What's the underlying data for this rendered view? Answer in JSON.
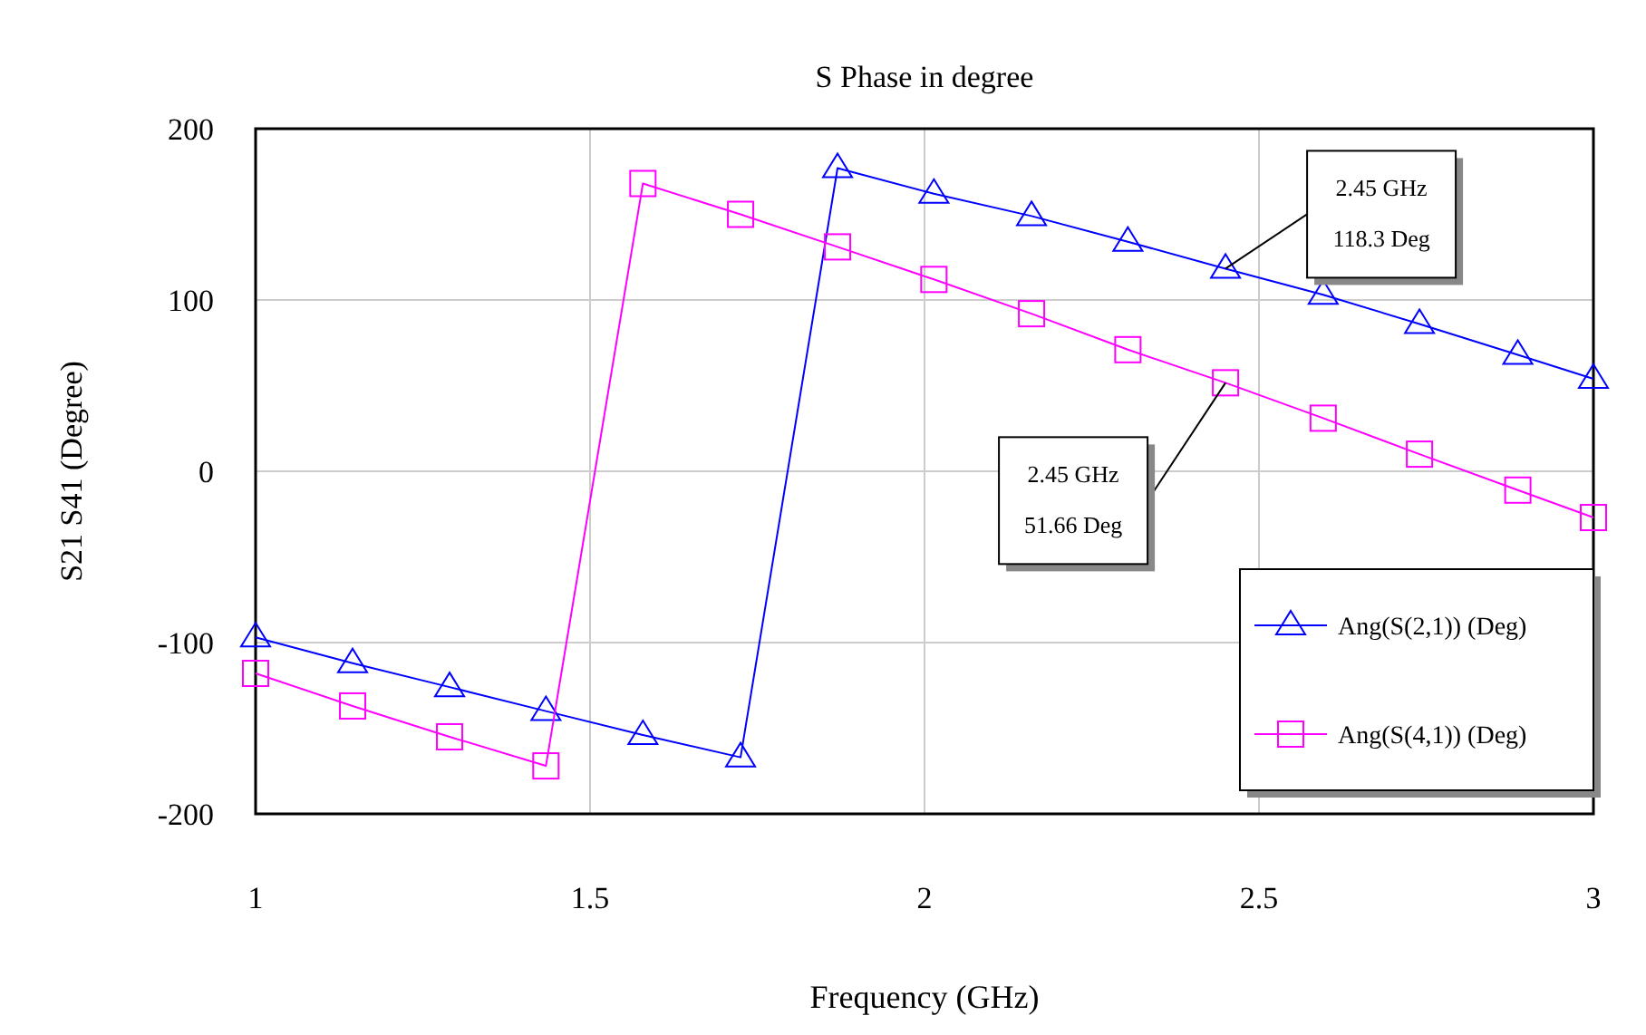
{
  "chart_data": {
    "type": "line",
    "title": "S Phase in degree",
    "xlabel": "Frequency (GHz)",
    "ylabel": "S21 S41 (Degree)",
    "x": [
      1,
      1.145,
      1.29,
      1.434,
      1.579,
      1.725,
      1.87,
      2.014,
      2.16,
      2.304,
      2.45,
      2.596,
      2.74,
      2.887,
      3
    ],
    "series": [
      {
        "name": "Ang(S(2,1)) (Deg)",
        "color": "#0000ff",
        "marker": "triangle",
        "values": [
          -97,
          -112,
          -126,
          -140,
          -154,
          -167,
          177,
          162,
          149,
          134,
          118.3,
          103,
          86,
          68,
          54
        ]
      },
      {
        "name": "Ang(S(4,1)) (Deg)",
        "color": "#ff00ff",
        "marker": "square",
        "values": [
          -118,
          -137,
          -155,
          -172,
          168,
          150,
          131,
          112,
          92,
          71,
          51.66,
          31,
          10,
          -11,
          -27
        ]
      }
    ],
    "xlim": [
      1,
      3
    ],
    "ylim": [
      -200,
      200
    ],
    "xticks": [
      1,
      1.5,
      2,
      2.5,
      3
    ],
    "yticks": [
      -200,
      -100,
      0,
      100,
      200
    ],
    "grid": true,
    "legend": "bottom right",
    "line_style": "solid",
    "annotations": [
      {
        "text": "2.45 GHz\n118.3 Deg",
        "x": 2.45,
        "y": 118.3
      },
      {
        "text": "2.45 GHz\n51.66 Deg",
        "x": 2.45,
        "y": 51.66
      }
    ]
  }
}
